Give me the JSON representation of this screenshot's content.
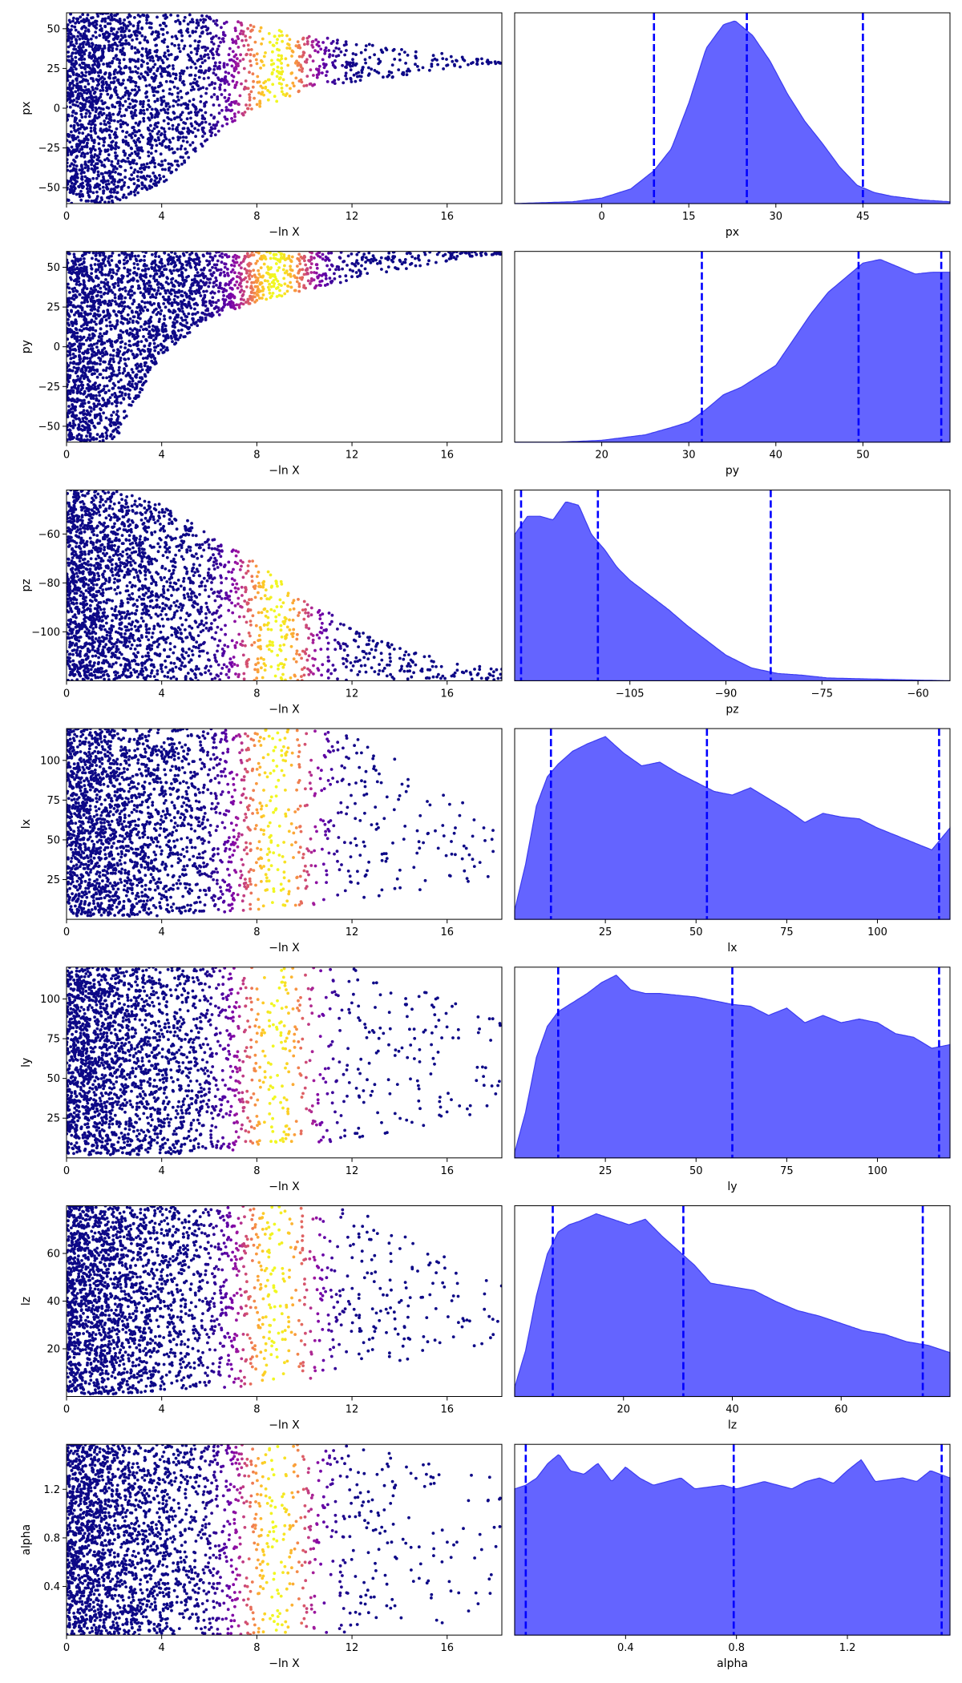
{
  "figure": {
    "rows": 7,
    "columns": 2,
    "left_panel": "scatter of samples against -ln X colored by posterior weight (plasma colormap)",
    "right_panel": "marginal posterior density with 0.025, 0.5, 0.975 quantile lines"
  },
  "colors": {
    "low_weight": "#0d0887",
    "mid_weight": "#cc4778",
    "high_weight": "#f0f921",
    "density_fill": "#6464ff",
    "density_edge": "#3c3cf0",
    "quantile_line": "#0000ff"
  },
  "chart_data": [
    {
      "type": "scatter",
      "name": "px-trace",
      "xlabel": "−ln X",
      "ylabel": "px",
      "xlim": [
        0,
        18.3
      ],
      "ylim": [
        -60,
        60
      ],
      "xticks": [
        0,
        4,
        8,
        12,
        16
      ],
      "yticks": [
        -50,
        -25,
        0,
        25,
        50
      ],
      "point_envelope": {
        "lnx": [
          0,
          2,
          4,
          6,
          8,
          10,
          12,
          14,
          16,
          18
        ],
        "upper": [
          60,
          60,
          60,
          58,
          52,
          46,
          42,
          38,
          34,
          30
        ],
        "lower": [
          -60,
          -60,
          -48,
          -20,
          0,
          10,
          16,
          20,
          25,
          28
        ]
      },
      "weight_peak_lnx": 8.8
    },
    {
      "type": "area",
      "name": "px-marginal",
      "xlabel": "px",
      "xlim": [
        -15,
        60
      ],
      "xticks": [
        0,
        15,
        30,
        45
      ],
      "x": [
        -15,
        -5,
        0,
        5,
        9,
        12,
        15,
        18,
        21,
        23,
        26,
        29,
        32,
        35,
        38,
        41,
        44,
        47,
        50,
        55,
        60
      ],
      "density": [
        0,
        0.01,
        0.03,
        0.08,
        0.18,
        0.3,
        0.55,
        0.85,
        0.98,
        1.0,
        0.92,
        0.78,
        0.6,
        0.45,
        0.33,
        0.2,
        0.1,
        0.06,
        0.04,
        0.02,
        0.01
      ],
      "quantiles": [
        9,
        25,
        45
      ]
    },
    {
      "type": "scatter",
      "name": "py-trace",
      "xlabel": "−ln X",
      "ylabel": "py",
      "xlim": [
        0,
        18.3
      ],
      "ylim": [
        -60,
        60
      ],
      "xticks": [
        0,
        4,
        8,
        12,
        16
      ],
      "yticks": [
        -50,
        -25,
        0,
        25,
        50
      ],
      "point_envelope": {
        "lnx": [
          0,
          2,
          4,
          6,
          8,
          10,
          12,
          14,
          16,
          18
        ],
        "upper": [
          60,
          60,
          60,
          60,
          60,
          60,
          60,
          60,
          60,
          60
        ],
        "lower": [
          -60,
          -60,
          -5,
          18,
          28,
          35,
          42,
          48,
          54,
          58
        ]
      },
      "weight_peak_lnx": 8.8
    },
    {
      "type": "area",
      "name": "py-marginal",
      "xlabel": "py",
      "xlim": [
        10,
        60
      ],
      "xticks": [
        20,
        30,
        40,
        50
      ],
      "x": [
        10,
        15,
        20,
        25,
        28,
        30,
        32,
        34,
        36,
        38,
        40,
        42,
        44,
        46,
        48,
        50,
        52,
        54,
        56,
        58,
        60
      ],
      "density": [
        0,
        0,
        0.01,
        0.04,
        0.08,
        0.11,
        0.18,
        0.26,
        0.3,
        0.36,
        0.42,
        0.56,
        0.7,
        0.82,
        0.9,
        0.98,
        1.0,
        0.96,
        0.92,
        0.93,
        0.93
      ],
      "quantiles": [
        31.5,
        49.5,
        59
      ]
    },
    {
      "type": "scatter",
      "name": "pz-trace",
      "xlabel": "−ln X",
      "ylabel": "pz",
      "xlim": [
        0,
        18.3
      ],
      "ylim": [
        -120,
        -42
      ],
      "xticks": [
        0,
        4,
        8,
        12,
        16
      ],
      "yticks": [
        -100,
        -80,
        -60
      ],
      "point_envelope": {
        "lnx": [
          0,
          2,
          4,
          6,
          8,
          10,
          12,
          14,
          16,
          18
        ],
        "upper": [
          -42,
          -42,
          -48,
          -60,
          -72,
          -86,
          -98,
          -106,
          -112,
          -115
        ],
        "lower": [
          -120,
          -120,
          -120,
          -120,
          -120,
          -120,
          -120,
          -120,
          -120,
          -120
        ]
      },
      "weight_peak_lnx": 8.8
    },
    {
      "type": "area",
      "name": "pz-marginal",
      "xlabel": "pz",
      "xlim": [
        -123,
        -55
      ],
      "xticks": [
        -105,
        -90,
        -75,
        -60
      ],
      "x": [
        -123,
        -121,
        -119,
        -117,
        -115,
        -113,
        -111,
        -109,
        -107,
        -105,
        -102,
        -99,
        -96,
        -93,
        -90,
        -86,
        -82,
        -78,
        -74,
        -68,
        -62,
        -55
      ],
      "density": [
        0.8,
        0.9,
        0.9,
        0.88,
        0.98,
        0.96,
        0.8,
        0.72,
        0.62,
        0.55,
        0.47,
        0.39,
        0.3,
        0.22,
        0.14,
        0.07,
        0.04,
        0.03,
        0.015,
        0.01,
        0.005,
        0
      ],
      "quantiles": [
        -122,
        -110,
        -83
      ]
    },
    {
      "type": "scatter",
      "name": "lx-trace",
      "xlabel": "−ln X",
      "ylabel": "lx",
      "xlim": [
        0,
        18.3
      ],
      "ylim": [
        0,
        120
      ],
      "xticks": [
        0,
        4,
        8,
        12,
        16
      ],
      "yticks": [
        25,
        50,
        75,
        100
      ],
      "point_envelope": {
        "lnx": [
          0,
          2,
          4,
          6,
          8,
          10,
          12,
          14,
          16,
          18
        ],
        "upper": [
          120,
          120,
          120,
          120,
          120,
          120,
          118,
          100,
          80,
          60
        ],
        "lower": [
          2,
          2,
          2,
          4,
          6,
          8,
          12,
          16,
          20,
          24
        ]
      },
      "weight_peak_lnx": 8.8
    },
    {
      "type": "area",
      "name": "lx-marginal",
      "xlabel": "lx",
      "xlim": [
        0,
        120
      ],
      "xticks": [
        25,
        50,
        75,
        100
      ],
      "x": [
        0,
        3,
        6,
        9,
        12,
        16,
        20,
        25,
        30,
        35,
        40,
        45,
        50,
        55,
        60,
        65,
        70,
        75,
        80,
        85,
        90,
        95,
        100,
        105,
        110,
        115,
        120
      ],
      "density": [
        0.05,
        0.3,
        0.62,
        0.78,
        0.85,
        0.92,
        0.96,
        1.0,
        0.91,
        0.84,
        0.86,
        0.8,
        0.75,
        0.7,
        0.68,
        0.72,
        0.66,
        0.6,
        0.53,
        0.58,
        0.56,
        0.55,
        0.5,
        0.46,
        0.42,
        0.38,
        0.5
      ],
      "quantiles": [
        10,
        53,
        117
      ]
    },
    {
      "type": "scatter",
      "name": "ly-trace",
      "xlabel": "−ln X",
      "ylabel": "ly",
      "xlim": [
        0,
        18.3
      ],
      "ylim": [
        0,
        120
      ],
      "xticks": [
        0,
        4,
        8,
        12,
        16
      ],
      "yticks": [
        25,
        50,
        75,
        100
      ],
      "point_envelope": {
        "lnx": [
          0,
          2,
          4,
          6,
          8,
          10,
          12,
          14,
          16,
          18
        ],
        "upper": [
          120,
          120,
          120,
          120,
          120,
          120,
          120,
          110,
          100,
          90
        ],
        "lower": [
          2,
          2,
          2,
          4,
          6,
          8,
          12,
          16,
          22,
          26
        ]
      },
      "weight_peak_lnx": 8.8
    },
    {
      "type": "area",
      "name": "ly-marginal",
      "xlabel": "ly",
      "xlim": [
        0,
        120
      ],
      "xticks": [
        25,
        50,
        75,
        100
      ],
      "x": [
        0,
        3,
        6,
        9,
        12,
        16,
        20,
        24,
        28,
        32,
        36,
        40,
        45,
        50,
        55,
        60,
        65,
        70,
        75,
        80,
        85,
        90,
        95,
        100,
        105,
        110,
        115,
        120
      ],
      "density": [
        0.03,
        0.25,
        0.55,
        0.72,
        0.8,
        0.85,
        0.9,
        0.96,
        1.0,
        0.92,
        0.9,
        0.9,
        0.89,
        0.88,
        0.86,
        0.84,
        0.83,
        0.78,
        0.82,
        0.74,
        0.78,
        0.74,
        0.76,
        0.74,
        0.68,
        0.66,
        0.6,
        0.62
      ],
      "quantiles": [
        12,
        60,
        117
      ]
    },
    {
      "type": "scatter",
      "name": "lz-trace",
      "xlabel": "−ln X",
      "ylabel": "lz",
      "xlim": [
        0,
        18.3
      ],
      "ylim": [
        0,
        80
      ],
      "xticks": [
        0,
        4,
        8,
        12,
        16
      ],
      "yticks": [
        20,
        40,
        60
      ],
      "point_envelope": {
        "lnx": [
          0,
          2,
          4,
          6,
          8,
          10,
          12,
          14,
          16,
          18
        ],
        "upper": [
          80,
          80,
          80,
          80,
          80,
          80,
          78,
          72,
          62,
          54
        ],
        "lower": [
          1,
          1,
          2,
          3,
          4,
          6,
          10,
          14,
          18,
          22
        ]
      },
      "weight_peak_lnx": 8.8
    },
    {
      "type": "area",
      "name": "lz-marginal",
      "xlabel": "lz",
      "xlim": [
        0,
        80
      ],
      "xticks": [
        20,
        40,
        60
      ],
      "x": [
        0,
        2,
        4,
        6,
        8,
        10,
        12,
        15,
        18,
        21,
        24,
        27,
        30,
        33,
        36,
        40,
        44,
        48,
        52,
        56,
        60,
        64,
        68,
        72,
        76,
        80
      ],
      "density": [
        0.05,
        0.25,
        0.55,
        0.78,
        0.9,
        0.94,
        0.96,
        1.0,
        0.97,
        0.94,
        0.97,
        0.88,
        0.8,
        0.72,
        0.62,
        0.6,
        0.58,
        0.52,
        0.47,
        0.44,
        0.4,
        0.36,
        0.34,
        0.3,
        0.28,
        0.24
      ],
      "quantiles": [
        7,
        31,
        75
      ]
    },
    {
      "type": "scatter",
      "name": "alpha-trace",
      "xlabel": "−ln X",
      "ylabel": "alpha",
      "xlim": [
        0,
        18.3
      ],
      "ylim": [
        0,
        1.57
      ],
      "xticks": [
        0,
        4,
        8,
        12,
        16
      ],
      "yticks": [
        0.4,
        0.8,
        1.2
      ],
      "point_envelope": {
        "lnx": [
          0,
          2,
          4,
          6,
          8,
          10,
          12,
          14,
          16,
          18
        ],
        "upper": [
          1.57,
          1.57,
          1.57,
          1.57,
          1.57,
          1.57,
          1.57,
          1.5,
          1.4,
          1.3
        ],
        "lower": [
          0,
          0,
          0,
          0,
          0,
          0,
          0.02,
          0.05,
          0.1,
          0.2
        ]
      },
      "weight_peak_lnx": 8.8
    },
    {
      "type": "area",
      "name": "alpha-marginal",
      "xlabel": "alpha",
      "xlim": [
        0,
        1.57
      ],
      "xticks": [
        0.4,
        0.8,
        1.2
      ],
      "x": [
        0,
        0.04,
        0.08,
        0.12,
        0.16,
        0.2,
        0.25,
        0.3,
        0.35,
        0.4,
        0.45,
        0.5,
        0.55,
        0.6,
        0.65,
        0.7,
        0.75,
        0.8,
        0.85,
        0.9,
        0.95,
        1.0,
        1.05,
        1.1,
        1.15,
        1.2,
        1.25,
        1.3,
        1.35,
        1.4,
        1.45,
        1.5,
        1.57
      ],
      "density": [
        0.8,
        0.82,
        0.86,
        0.94,
        0.99,
        0.9,
        0.88,
        0.94,
        0.84,
        0.92,
        0.86,
        0.82,
        0.84,
        0.86,
        0.8,
        0.81,
        0.82,
        0.8,
        0.82,
        0.84,
        0.82,
        0.8,
        0.84,
        0.86,
        0.83,
        0.9,
        0.96,
        0.84,
        0.85,
        0.86,
        0.84,
        0.9,
        0.86
      ],
      "quantiles": [
        0.04,
        0.79,
        1.54
      ]
    }
  ]
}
